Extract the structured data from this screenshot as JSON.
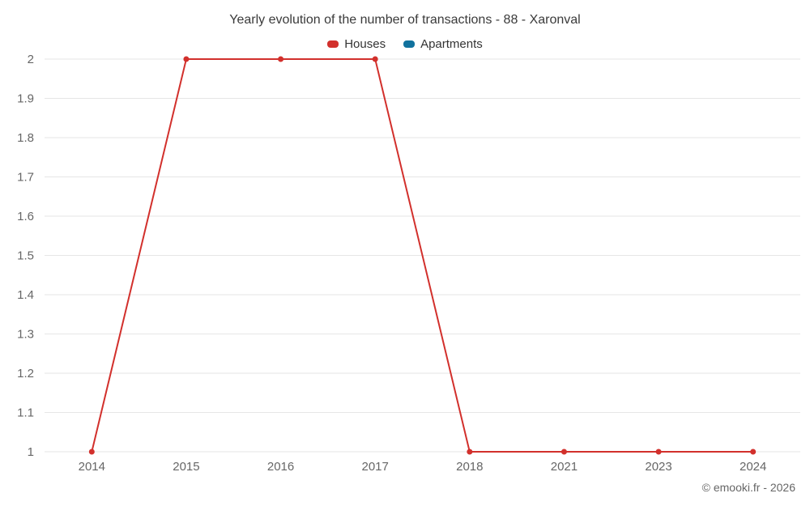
{
  "title": "Yearly evolution of the number of transactions - 88 - Xaronval",
  "legend": [
    {
      "label": "Houses",
      "color": "#d2302c"
    },
    {
      "label": "Apartments",
      "color": "#11729e"
    }
  ],
  "copyright": "© emooki.fr - 2026",
  "chart_data": {
    "type": "line",
    "title": "Yearly evolution of the number of transactions - 88 - Xaronval",
    "categories": [
      "2014",
      "2015",
      "2016",
      "2017",
      "2018",
      "2021",
      "2023",
      "2024"
    ],
    "series": [
      {
        "name": "Houses",
        "color": "#d2302c",
        "values": [
          1,
          2,
          2,
          2,
          1,
          1,
          1,
          1
        ]
      },
      {
        "name": "Apartments",
        "color": "#11729e",
        "values": []
      }
    ],
    "xlabel": "",
    "ylabel": "",
    "ylim": [
      1,
      2
    ],
    "yticks": [
      1,
      1.1,
      1.2,
      1.3,
      1.4,
      1.5,
      1.6,
      1.7,
      1.8,
      1.9,
      2
    ],
    "grid": true,
    "legend_position": "top",
    "annotations": [
      "© emooki.fr - 2026"
    ]
  }
}
